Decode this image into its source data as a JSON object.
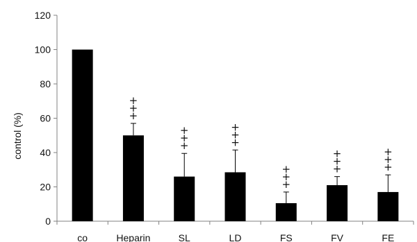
{
  "chart_data": {
    "type": "bar",
    "title": "",
    "xlabel": "",
    "ylabel": "control (%)",
    "ylim": [
      0,
      120
    ],
    "yticks": [
      0,
      20,
      40,
      60,
      80,
      100,
      120
    ],
    "grid": false,
    "legend": "none",
    "bar_color": "#000000",
    "categories": [
      "co",
      "Heparin",
      "SL",
      "LD",
      "FS",
      "FV",
      "FE"
    ],
    "values": [
      100,
      50,
      26,
      28.5,
      10.5,
      21,
      17
    ],
    "error": [
      0,
      7,
      13.5,
      13,
      6.5,
      5,
      10
    ],
    "significance": [
      "",
      "+\n+\n+",
      "+\n+\n+",
      "+\n+\n+",
      "+\n+\n+",
      "+\n+\n+",
      "+\n+\n+"
    ]
  }
}
